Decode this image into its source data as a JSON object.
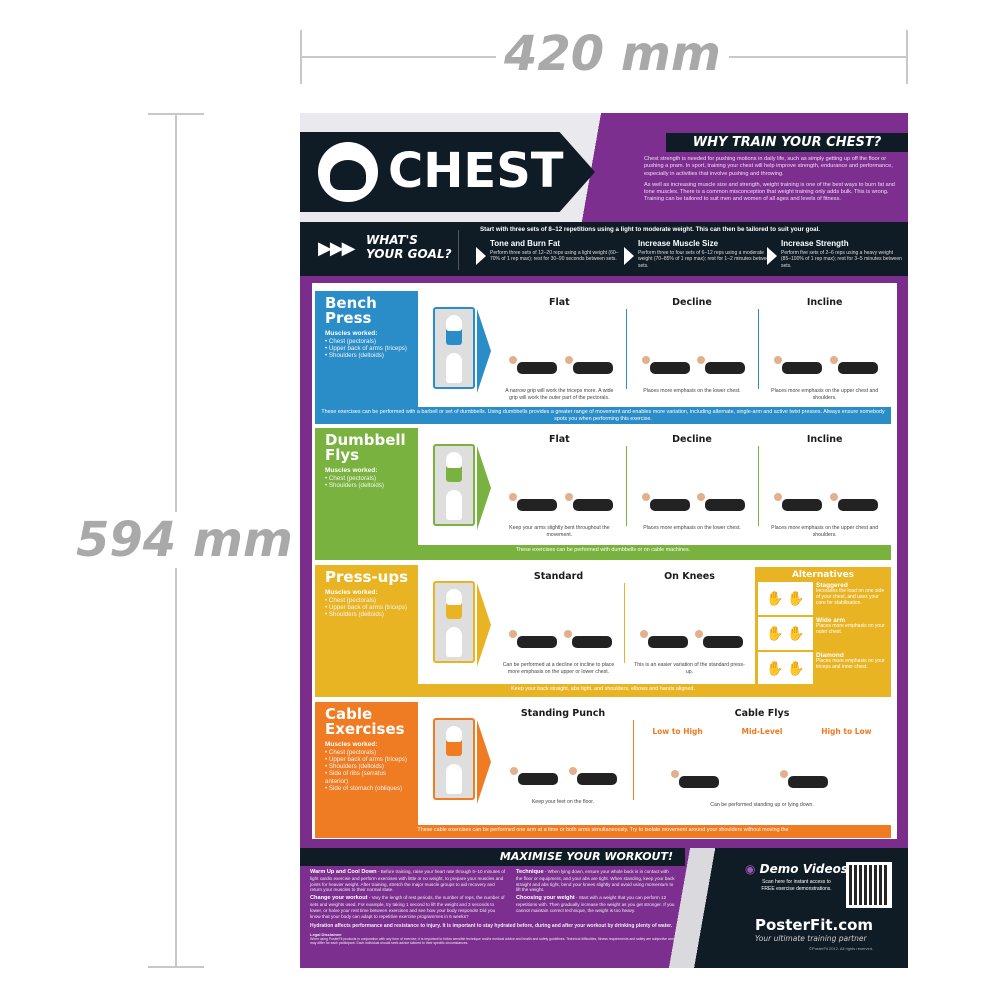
{
  "dimensions": {
    "width": "420 mm",
    "height": "594 mm"
  },
  "colors": {
    "purple": "#7a2d8a",
    "dark": "#0f1c26",
    "bench": "#2a8dc8",
    "dumbbell": "#7ab23f",
    "pressups": "#e9b423",
    "cable": "#ef7b22"
  },
  "header": {
    "title": "CHEST",
    "logo_icon": "chest-muscle-icon",
    "why_title": "WHY TRAIN YOUR CHEST?",
    "why_p1": "Chest strength is needed for pushing motions in daily life, such as simply getting up off the floor or pushing a pram. In sport, training your chest will help improve strength, endurance and performance, especially in activities that involve pushing and throwing.",
    "why_p2": "As well as increasing muscle size and strength, weight training is one of the best ways to burn fat and tone muscles. There is a common misconception that weight training only adds bulk. This is wrong. Training can be tailored to suit men and women of all ages and levels of fitness."
  },
  "goal": {
    "title_1": "WHAT'S",
    "title_2": "YOUR GOAL?",
    "intro": "Start with three sets of 8–12 repetitions using a light to moderate weight. This can then be tailored to suit your goal.",
    "items": [
      {
        "title": "Tone and Burn Fat",
        "text": "Perform three sets of 12–20 reps using a light weight (60–70% of 1 rep max); rest for 30–90 seconds between sets."
      },
      {
        "title": "Increase Muscle Size",
        "text": "Perform three to four sets of 6–12 reps using a moderate weight (70–85% of 1 rep max); rest for 1–2 minutes between sets."
      },
      {
        "title": "Increase Strength",
        "text": "Perform five sets of 2–6 reps using a heavy weight (85–100% of 1 rep max); rest for 3–5 minutes between sets."
      }
    ]
  },
  "sections": [
    {
      "id": "bench-press",
      "color": "#2a8dc8",
      "title": "Bench Press",
      "muscles_label": "Muscles worked:",
      "muscles": [
        "Chest (pectorals)",
        "Upper back of arms (triceps)",
        "Shoulders (deltoids)"
      ],
      "columns": [
        {
          "title": "Flat",
          "text": "A narrow grip will work the triceps more. A wide grip will work the outer part of the pectorals."
        },
        {
          "title": "Decline",
          "text": "Places more emphasis on the lower chest."
        },
        {
          "title": "Incline",
          "text": "Places more emphasis on the upper chest and shoulders."
        }
      ],
      "caption": "These exercises can be performed with a barbell or set of dumbbells. Using dumbbells provides a greater range of movement and enables more variation, including alternate, single-arm and active twist presses. Always ensure somebody spots you when performing this exercise."
    },
    {
      "id": "dumbbell-flys",
      "color": "#7ab23f",
      "title": "Dumbbell Flys",
      "muscles_label": "Muscles worked:",
      "muscles": [
        "Chest (pectorals)",
        "Shoulders (deltoids)"
      ],
      "columns": [
        {
          "title": "Flat",
          "text": "Keep your arms slightly bent throughout the movement."
        },
        {
          "title": "Decline",
          "text": "Places more emphasis on the lower chest."
        },
        {
          "title": "Incline",
          "text": "Places more emphasis on the upper chest and shoulders."
        }
      ],
      "caption": "These exercises can be performed with dumbbells or on cable machines."
    },
    {
      "id": "press-ups",
      "color": "#e9b423",
      "title": "Press-ups",
      "muscles_label": "Muscles worked:",
      "muscles": [
        "Chest (pectorals)",
        "Upper back of arms (triceps)",
        "Shoulders (deltoids)"
      ],
      "columns": [
        {
          "title": "Standard",
          "text": "Can be performed at a decline or incline to place more emphasis on the upper or lower chest."
        },
        {
          "title": "On Knees",
          "text": "This is an easier variation of the standard press-up."
        }
      ],
      "alternatives": {
        "title": "Alternatives",
        "items": [
          {
            "title": "Staggered",
            "text": "Increases the load on one side of your chest, and uses your core for stabilisation."
          },
          {
            "title": "Wide arm",
            "text": "Places more emphasis on your outer chest."
          },
          {
            "title": "Diamond",
            "text": "Places more emphasis on your triceps and inner chest."
          }
        ]
      },
      "caption": "Keep your back straight, abs tight, and shoulders, elbows and hands aligned."
    },
    {
      "id": "cable-exercises",
      "color": "#ef7b22",
      "title": "Cable Exercises",
      "muscles_label": "Muscles worked:",
      "muscles": [
        "Chest (pectorals)",
        "Upper back of arms (triceps)",
        "Shoulders (deltoids)",
        "Side of ribs (serratus anterior)",
        "Side of stomach (obliques)"
      ],
      "columns": [
        {
          "title": "Standing Punch",
          "text": "Keep your feet on the floor."
        },
        {
          "title": "Cable Flys",
          "text": "Can be performed standing up or lying down.",
          "subs": [
            "Low to High",
            "Mid-Level",
            "High to Low"
          ]
        }
      ],
      "caption": "These cable exercises can be performed one arm at a time or both arms simultaneously. Try to isolate movement around your shoulders without moving the"
    }
  ],
  "footer": {
    "title": "MAXIMISE YOUR WORKOUT!",
    "tips": [
      {
        "title": "Warm Up and Cool Down",
        "text": " - Before training, raise your heart rate through 5–10 minutes of light cardio exercise and perform exercises with little or no weight, to prepare your muscles and joints for heavier weight. After training, stretch the major muscle groups to aid recovery and return your muscles to their normal state."
      },
      {
        "title": "Change your workout",
        "text": " - Vary the length of rest periods, the number of reps, the number of sets and weights used. For example, try taking 1 second to lift the weight and 3 seconds to lower, or halve your rest time between exercises and see how your body responds! Did you know that your body can adapt to repetitive exercise programmes in 6 weeks?"
      },
      {
        "title": "Technique",
        "text": " - When lying down, ensure your whole back is in contact with the floor or equipment, and your abs are tight. When standing, keep your back straight and abs tight, bend your knees slightly and avoid using momentum to lift the weight."
      },
      {
        "title": "Choosing your weight",
        "text": " - Start with a weight that you can perform 12 repetitions with. Then gradually increase the weight as you get stronger. If you cannot maintain correct technique, the weight is too heavy."
      }
    ],
    "hydration": "Hydration affects performance and resistance to injury. It is important to stay hydrated before, during and after your workout by drinking plenty of water.",
    "disclaimer_title": "Legal Disclaimer",
    "disclaimer": "When using PosterFit products in conjunction with any form of exercise, it is important to follow sensible technique and/or medical advice and health and safety guidelines. Technical difficulties, fitness requirements and safety are subjective and may differ for each participant. Each individual should seek advice tailored to their specific circumstances.",
    "demo_title": "Demo Videos",
    "demo_text_1": "Scan here for instant access to",
    "demo_text_2": "FREE exercise demonstrations.",
    "brand": "PosterFit.com",
    "tagline": "Your ultimate training partner",
    "copyright": "©PosterFit 2012. All rights reserved."
  }
}
